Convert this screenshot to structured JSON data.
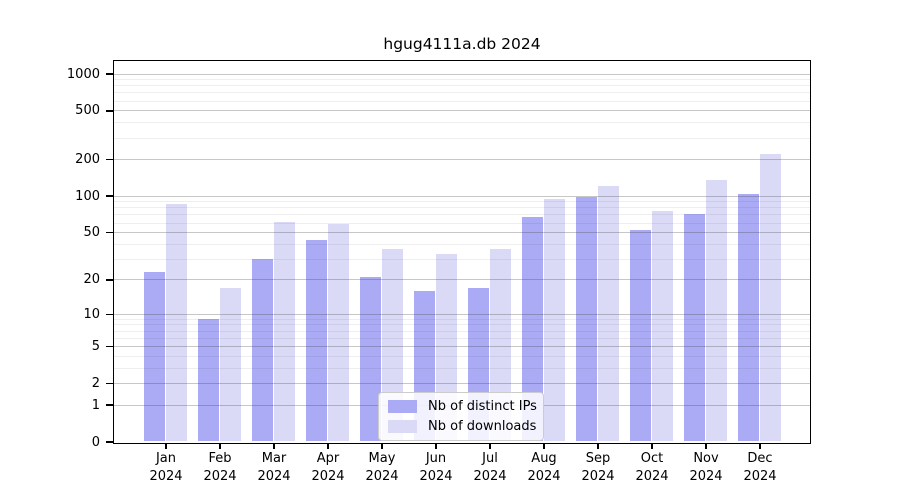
{
  "chart_data": {
    "type": "bar",
    "title": "hgug4111a.db 2024",
    "categories": [
      "Jan",
      "Feb",
      "Mar",
      "Apr",
      "May",
      "Jun",
      "Jul",
      "Aug",
      "Sep",
      "Oct",
      "Nov",
      "Dec"
    ],
    "x_sublabel": "2024",
    "series": [
      {
        "name": "Nb of distinct IPs",
        "color": "#aaaaf5",
        "values": [
          23,
          9,
          30,
          43,
          21,
          16,
          17,
          67,
          97,
          52,
          70,
          104
        ]
      },
      {
        "name": "Nb of downloads",
        "color": "#dadaf7",
        "values": [
          85,
          17,
          61,
          58,
          36,
          33,
          36,
          94,
          121,
          75,
          135,
          218
        ]
      }
    ],
    "y_scale": "log10(1+x)",
    "y_ticks": [
      0,
      1,
      2,
      5,
      10,
      20,
      50,
      100,
      200,
      500,
      1000
    ],
    "y_minor_ticks": [
      3,
      4,
      6,
      7,
      8,
      9,
      30,
      40,
      60,
      70,
      80,
      90,
      300,
      400,
      600,
      700,
      800,
      900
    ],
    "ylim": [
      0,
      1300
    ],
    "grid": "on",
    "legend": {
      "position": "bottom-center",
      "entries": [
        "Nb of distinct IPs",
        "Nb of downloads"
      ]
    },
    "colors": {
      "bar_distinct_ips": "#aaaaf5",
      "bar_downloads": "#dadaf7",
      "axis": "#000000",
      "major_grid": "#c4c4c4",
      "minor_grid": "#ededed",
      "legend_border": "#cccccc",
      "background": "#ffffff"
    }
  }
}
